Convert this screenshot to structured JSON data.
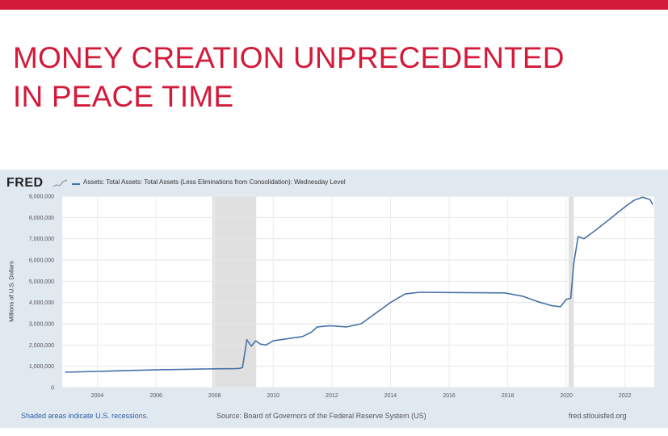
{
  "slide": {
    "title_line1": "MONEY CREATION UNPRECEDENTED",
    "title_line2": "IN PEACE TIME"
  },
  "fred": {
    "logo": "FRED",
    "series_label": "Assets: Total Assets: Total Assets (Less Eliminations from Consolidation): Wednesday Level",
    "footer_recessions": "Shaded areas indicate U.S. recessions.",
    "footer_source": "Source: Board of Governors of the Federal Reserve System (US)",
    "footer_site": "fred.stlouisfed.org"
  },
  "colors": {
    "accent": "#d31a3a",
    "line": "#4572a7",
    "frame": "#e1e9f0",
    "recession": "#e0e0e0"
  },
  "chart_data": {
    "type": "line",
    "title": "",
    "xlabel": "",
    "ylabel": "Millions of U.S. Dollars",
    "xlim": [
      2002.8,
      2023.0
    ],
    "ylim": [
      0,
      9000000
    ],
    "yticks": [
      0,
      1000000,
      2000000,
      3000000,
      4000000,
      5000000,
      6000000,
      7000000,
      8000000,
      9000000
    ],
    "ytick_labels": [
      "0",
      "1,000,000",
      "2,000,000",
      "3,000,000",
      "4,000,000",
      "5,000,000",
      "6,000,000",
      "7,000,000",
      "8,000,000",
      "9,000,000"
    ],
    "xticks": [
      2004,
      2006,
      2008,
      2010,
      2012,
      2014,
      2016,
      2018,
      2020,
      2022
    ],
    "xtick_labels": [
      "2004",
      "2006",
      "2008",
      "2010",
      "2012",
      "2014",
      "2016",
      "2018",
      "2020",
      "2022"
    ],
    "grid": true,
    "legend": "top-left",
    "recessions": [
      [
        2007.92,
        2009.42
      ],
      [
        2020.08,
        2020.25
      ]
    ],
    "series": [
      {
        "name": "Assets: Total Assets: Total Assets (Less Eliminations from Consolidation): Wednesday Level",
        "x": [
          2002.9,
          2004.0,
          2005.0,
          2006.0,
          2007.0,
          2008.0,
          2008.7,
          2008.85,
          2008.95,
          2009.1,
          2009.25,
          2009.4,
          2009.55,
          2009.75,
          2010.0,
          2010.5,
          2011.0,
          2011.3,
          2011.5,
          2011.9,
          2012.0,
          2012.5,
          2013.0,
          2013.5,
          2014.0,
          2014.5,
          2015.0,
          2016.0,
          2017.0,
          2017.9,
          2018.5,
          2019.0,
          2019.5,
          2019.8,
          2020.0,
          2020.15,
          2020.25,
          2020.4,
          2020.6,
          2020.8,
          2021.0,
          2021.5,
          2022.0,
          2022.3,
          2022.6,
          2022.85,
          2022.95
        ],
        "y": [
          720000,
          760000,
          800000,
          830000,
          860000,
          880000,
          890000,
          900000,
          940000,
          2250000,
          1950000,
          2200000,
          2050000,
          2000000,
          2200000,
          2300000,
          2400000,
          2600000,
          2850000,
          2900000,
          2900000,
          2850000,
          3000000,
          3500000,
          4000000,
          4400000,
          4480000,
          4470000,
          4460000,
          4450000,
          4300000,
          4050000,
          3850000,
          3800000,
          4150000,
          4200000,
          5800000,
          7100000,
          7000000,
          7200000,
          7400000,
          7950000,
          8500000,
          8800000,
          8950000,
          8850000,
          8600000
        ]
      }
    ]
  }
}
